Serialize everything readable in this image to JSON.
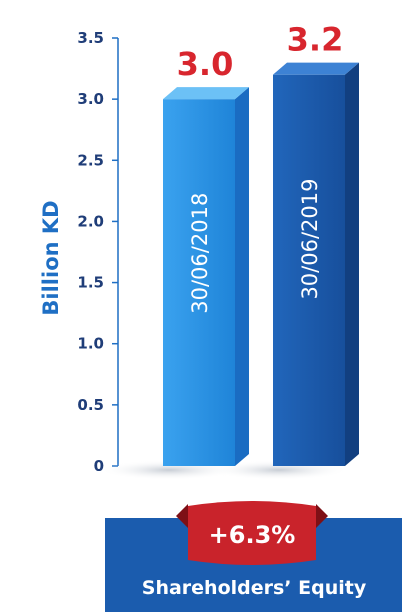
{
  "chart_data": {
    "type": "bar",
    "categories": [
      "30/06/2018",
      "30/06/2019"
    ],
    "values": [
      3.0,
      3.2
    ],
    "data_labels": [
      "3.0",
      "3.2"
    ],
    "ylabel": "Billion KD",
    "ylim": [
      0,
      3.5
    ],
    "yticks": [
      "0",
      "0.5",
      "1.0",
      "1.5",
      "2.0",
      "2.5",
      "3.0",
      "3.5"
    ],
    "grid": false,
    "bar_colors": [
      "#2b8fe3",
      "#1b5cae"
    ]
  },
  "change_badge": {
    "text": "+6.3%",
    "color": "#c9232b"
  },
  "footer": {
    "title": "Shareholders’ Equity",
    "color": "#1b5cae"
  }
}
